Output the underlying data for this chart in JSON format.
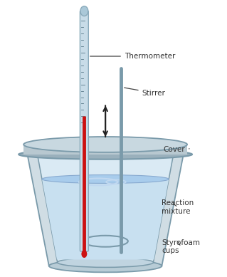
{
  "bg_color": "#ffffff",
  "thermometer_tube_color": "#c8dce8",
  "thermometer_tube_edge": "#8aaabb",
  "thermometer_mercury": "#cc1111",
  "cover_face": "#b8c8d0",
  "cover_edge": "#7a9aaa",
  "cup_outer_face": "#c8d8e0",
  "cup_outer_edge": "#7a9aaa",
  "cup_inner_face": "#daeaf4",
  "cup_inner_edge": "#7a9aaa",
  "water_face": "#c8e0f0",
  "water_surface": "#a8ccec",
  "stirrer_color": "#7a9aaa",
  "arrow_color": "#222222",
  "label_color": "#333333",
  "label_fontsize": 7.5,
  "labels": {
    "thermometer": "Thermometer",
    "stirrer": "Stirrer",
    "cover": "Cover",
    "reaction_mixture": "Reaction\nmixture",
    "styrofoam_cups": "Styrofoam\ncups"
  },
  "figsize": [
    3.19,
    3.89
  ],
  "dpi": 100
}
